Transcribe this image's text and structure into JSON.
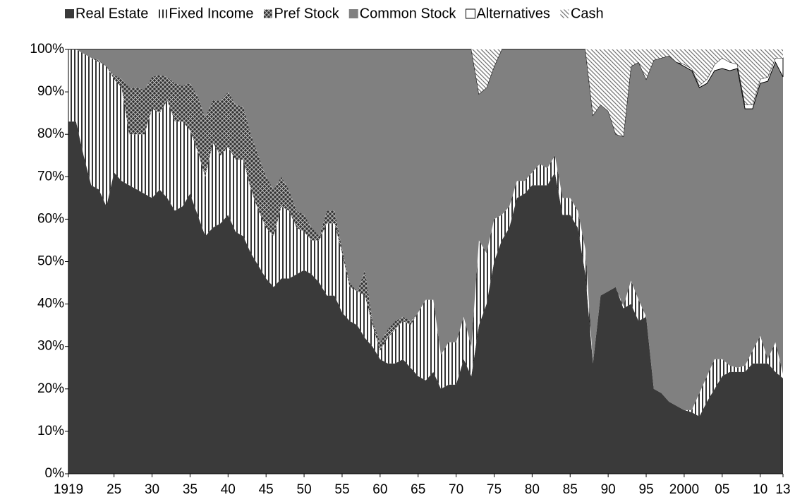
{
  "chart_data": {
    "type": "stacked-area",
    "x": [
      1919,
      1920,
      1921,
      1922,
      1923,
      1924,
      1925,
      1926,
      1927,
      1928,
      1929,
      1930,
      1931,
      1932,
      1933,
      1934,
      1935,
      1936,
      1937,
      1938,
      1939,
      1940,
      1941,
      1942,
      1943,
      1944,
      1945,
      1946,
      1947,
      1948,
      1949,
      1950,
      1951,
      1952,
      1953,
      1954,
      1955,
      1956,
      1957,
      1958,
      1959,
      1960,
      1961,
      1962,
      1963,
      1964,
      1965,
      1966,
      1967,
      1968,
      1969,
      1970,
      1971,
      1972,
      1973,
      1974,
      1975,
      1976,
      1977,
      1978,
      1979,
      1980,
      1981,
      1982,
      1983,
      1984,
      1985,
      1986,
      1987,
      1988,
      1989,
      1990,
      1991,
      1992,
      1993,
      1994,
      1995,
      1996,
      1997,
      1998,
      1999,
      2000,
      2001,
      2002,
      2003,
      2004,
      2005,
      2006,
      2007,
      2008,
      2009,
      2010,
      2011,
      2012,
      2013
    ],
    "series": [
      {
        "name": "Real Estate",
        "color": "#3a3a3a",
        "pattern": "solid",
        "values": [
          83,
          83,
          75,
          68,
          67,
          63,
          71,
          69,
          68,
          67,
          66,
          65,
          67,
          65,
          62,
          63,
          66,
          61,
          56,
          58,
          59,
          61,
          57,
          56,
          52,
          49,
          46,
          44,
          46,
          46,
          47,
          48,
          47,
          45,
          42,
          42,
          38,
          36,
          35,
          32,
          30,
          27,
          26,
          26,
          27,
          25,
          23,
          22,
          24,
          20,
          21,
          21,
          27,
          23,
          35,
          40,
          50,
          55,
          58,
          65,
          66,
          68,
          68,
          68,
          71,
          61,
          61,
          58,
          47,
          26,
          42,
          43,
          44,
          39,
          40,
          36,
          37,
          20,
          19,
          17,
          16,
          15,
          14.5,
          13.5,
          17,
          20,
          23,
          24,
          24,
          24,
          26,
          26,
          26,
          24,
          22.5
        ]
      },
      {
        "name": "Fixed Income",
        "color": "#000000",
        "pattern": "vertical",
        "values": [
          17,
          17,
          24,
          30,
          30,
          33,
          22,
          22,
          12,
          13,
          14,
          21,
          18,
          23,
          21,
          20,
          15,
          15,
          14,
          20,
          16,
          16,
          17,
          18,
          15,
          13,
          12,
          12,
          17,
          16,
          11,
          9,
          8,
          10,
          17,
          17,
          14,
          8,
          8,
          10,
          5,
          2,
          6,
          8,
          9,
          10,
          15,
          19,
          17,
          8,
          10,
          10,
          10,
          7,
          20,
          12,
          10,
          6,
          5,
          4,
          3,
          3,
          5,
          4,
          4,
          4,
          4,
          4,
          6,
          0,
          0,
          0,
          0,
          0.5,
          5.5,
          5,
          0,
          0,
          0,
          0,
          0,
          0,
          0.5,
          5.5,
          6,
          7,
          4,
          1.5,
          1,
          1.5,
          3,
          6.5,
          1,
          7,
          1
        ]
      },
      {
        "name": "Pref Stock",
        "color": "#333333",
        "pattern": "cross",
        "values": [
          0,
          0,
          0,
          0,
          0.5,
          0,
          1,
          2,
          11,
          11,
          10.5,
          7.5,
          9,
          5.5,
          9,
          8.5,
          11,
          13,
          14,
          10,
          13,
          13,
          13,
          12.5,
          13,
          13,
          12,
          11,
          7,
          5,
          4,
          4,
          3,
          1,
          3,
          3,
          1,
          1,
          0,
          6,
          1,
          2,
          2,
          2,
          1,
          1,
          0,
          0,
          0,
          0,
          0,
          0,
          0,
          0,
          0,
          0,
          0,
          0,
          0,
          0,
          0,
          0,
          0,
          0,
          0,
          0,
          0,
          0,
          0,
          0,
          0,
          0,
          0,
          0,
          0,
          0,
          0,
          0,
          0,
          0,
          0,
          0,
          0,
          0,
          0,
          0,
          0,
          0,
          0,
          0,
          0,
          0,
          0,
          0,
          0
        ]
      },
      {
        "name": "Common Stock",
        "color": "#808080",
        "pattern": "solid",
        "values": [
          0,
          0,
          1,
          2,
          2.5,
          4,
          6,
          7,
          9,
          9,
          9.5,
          6.5,
          6,
          6.5,
          8,
          8.5,
          8,
          11,
          16,
          12,
          12,
          10,
          13,
          13.5,
          20,
          25,
          30,
          33,
          30,
          33,
          38,
          39,
          42,
          44,
          38,
          38,
          47,
          55,
          57,
          52,
          64,
          69,
          66,
          64,
          63,
          64,
          62,
          59,
          59,
          72,
          69,
          69,
          63,
          70,
          34.5,
          39,
          36,
          39,
          37,
          31,
          31,
          29,
          27,
          28,
          25,
          35,
          35,
          38,
          47,
          58.5,
          45,
          42.5,
          36,
          40,
          50.5,
          56,
          56,
          77.5,
          79,
          81.5,
          81,
          81,
          80,
          72,
          69,
          68,
          68.5,
          69.5,
          70.5,
          60.5,
          57,
          59.5,
          65.5,
          66,
          70
        ]
      },
      {
        "name": "Alternatives",
        "color": "#ffffff",
        "edgecolor": "#000000",
        "pattern": "solid",
        "values": [
          0,
          0,
          0,
          0,
          0,
          0,
          0,
          0,
          0,
          0,
          0,
          0,
          0,
          0,
          0,
          0,
          0,
          0,
          0,
          0,
          0,
          0,
          0,
          0,
          0,
          0,
          0,
          0,
          0,
          0,
          0,
          0,
          0,
          0,
          0,
          0,
          0,
          0,
          0,
          0,
          0,
          0,
          0,
          0,
          0,
          0,
          0,
          0,
          0,
          0,
          0,
          0,
          0,
          0,
          0,
          0,
          0,
          0,
          0,
          0,
          0,
          0,
          0,
          0,
          0,
          0,
          0,
          0,
          0,
          0,
          0,
          0,
          0,
          0,
          0,
          0,
          0,
          0,
          0,
          0,
          0,
          0.5,
          0.5,
          0.5,
          1,
          1.5,
          2.5,
          2,
          1,
          1,
          1,
          1,
          1,
          1,
          4.5
        ]
      },
      {
        "name": "Cash",
        "color": "#777777",
        "pattern": "diagonal",
        "values": [
          0,
          0,
          0,
          0,
          0,
          0,
          0,
          0,
          0,
          0,
          0,
          0,
          0,
          0,
          0,
          0,
          0,
          0,
          0,
          0,
          0,
          0,
          0,
          0,
          0,
          0,
          0,
          0,
          0,
          0,
          0,
          0,
          0,
          0,
          0,
          0,
          0,
          0,
          0,
          0,
          0,
          0,
          0,
          0,
          0,
          0,
          0,
          0,
          0,
          0,
          0,
          0,
          0,
          0,
          10.5,
          9,
          4,
          0,
          0,
          0,
          0,
          0,
          0,
          0,
          0,
          0,
          0,
          0,
          0,
          15.5,
          13,
          14.5,
          20,
          20.5,
          4,
          3,
          7,
          2.5,
          2,
          1.5,
          3,
          3.5,
          4.5,
          8.5,
          7,
          3.5,
          2,
          3,
          3.5,
          13,
          13,
          7,
          6.5,
          2,
          2
        ]
      }
    ],
    "xlim": [
      1919,
      2013
    ],
    "xticks": [
      1919,
      {
        "value": 1925,
        "label": "25"
      },
      {
        "value": 1930,
        "label": "30"
      },
      {
        "value": 1935,
        "label": "35"
      },
      {
        "value": 1940,
        "label": "40"
      },
      {
        "value": 1945,
        "label": "45"
      },
      {
        "value": 1950,
        "label": "50"
      },
      {
        "value": 1955,
        "label": "55"
      },
      {
        "value": 1960,
        "label": "60"
      },
      {
        "value": 1965,
        "label": "65"
      },
      {
        "value": 1970,
        "label": "70"
      },
      {
        "value": 1975,
        "label": "75"
      },
      {
        "value": 1980,
        "label": "80"
      },
      {
        "value": 1985,
        "label": "85"
      },
      {
        "value": 1990,
        "label": "90"
      },
      {
        "value": 1995,
        "label": "95"
      },
      2000,
      {
        "value": 2005,
        "label": "05"
      },
      {
        "value": 2010,
        "label": "10"
      },
      {
        "value": 2013,
        "label": "13"
      }
    ],
    "ylim": [
      0,
      100
    ],
    "yticks": [
      {
        "value": 0,
        "label": "0%"
      },
      {
        "value": 10,
        "label": "10%"
      },
      {
        "value": 20,
        "label": "20%"
      },
      {
        "value": 30,
        "label": "30%"
      },
      {
        "value": 40,
        "label": "40%"
      },
      {
        "value": 50,
        "label": "50%"
      },
      {
        "value": 60,
        "label": "60%"
      },
      {
        "value": 70,
        "label": "70%"
      },
      {
        "value": 80,
        "label": "80%"
      },
      {
        "value": 90,
        "label": "90%"
      },
      {
        "value": 100,
        "label": "100%"
      }
    ],
    "legend": "top",
    "grid": false
  }
}
